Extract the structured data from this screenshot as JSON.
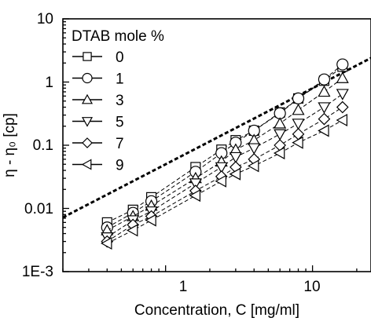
{
  "chart_data": {
    "type": "scatter",
    "title": "",
    "xlabel": "Concentration, C [mg/ml]",
    "ylabel": "η - η₀ [cp]",
    "xscale": "log",
    "yscale": "log",
    "xlim": [
      0.2,
      25
    ],
    "ylim": [
      0.001,
      10
    ],
    "x_ticks": [
      1,
      10
    ],
    "x_tick_labels": [
      "1",
      "10"
    ],
    "y_ticks": [
      0.001,
      0.01,
      0.1,
      1,
      10
    ],
    "y_tick_labels": [
      "1E-3",
      "0.01",
      "0.1",
      "1",
      "10"
    ],
    "grid": false,
    "legend": {
      "title": "DTAB mole %",
      "placement": "top-left"
    },
    "series": [
      {
        "name": "0",
        "marker": "square",
        "x": [
          0.4,
          0.6,
          0.8,
          1.6,
          2.4,
          3.0,
          4.0,
          6.0,
          8.0,
          12.0,
          16.0
        ],
        "y": [
          0.006,
          0.0095,
          0.015,
          0.045,
          0.085,
          0.12,
          0.17,
          0.33,
          0.55,
          1.05,
          1.75
        ]
      },
      {
        "name": "1",
        "marker": "circle",
        "x": [
          0.4,
          0.6,
          0.8,
          1.6,
          2.4,
          3.0,
          4.0,
          6.0,
          8.0,
          12.0,
          16.0
        ],
        "y": [
          0.005,
          0.0085,
          0.013,
          0.038,
          0.075,
          0.11,
          0.17,
          0.32,
          0.55,
          1.1,
          1.9
        ]
      },
      {
        "name": "3",
        "marker": "triangle-up",
        "x": [
          0.4,
          0.6,
          0.8,
          1.6,
          2.4,
          3.0,
          4.0,
          6.0,
          8.0,
          12.0,
          16.0
        ],
        "y": [
          0.0045,
          0.0075,
          0.011,
          0.03,
          0.055,
          0.085,
          0.12,
          0.22,
          0.36,
          0.7,
          1.15
        ]
      },
      {
        "name": "5",
        "marker": "triangle-down",
        "x": [
          0.4,
          0.6,
          0.8,
          1.6,
          2.4,
          3.0,
          4.0,
          6.0,
          8.0,
          12.0,
          16.0
        ],
        "y": [
          0.0035,
          0.0065,
          0.009,
          0.025,
          0.045,
          0.065,
          0.09,
          0.15,
          0.22,
          0.4,
          0.65
        ]
      },
      {
        "name": "7",
        "marker": "diamond",
        "x": [
          0.4,
          0.6,
          0.8,
          1.6,
          2.4,
          3.0,
          4.0,
          6.0,
          8.0,
          12.0,
          16.0
        ],
        "y": [
          0.003,
          0.0055,
          0.0075,
          0.019,
          0.032,
          0.045,
          0.06,
          0.1,
          0.15,
          0.26,
          0.4
        ]
      },
      {
        "name": "9",
        "marker": "triangle-left",
        "x": [
          0.4,
          0.6,
          0.8,
          1.6,
          2.4,
          3.0,
          4.0,
          6.0,
          8.0,
          12.0,
          16.0
        ],
        "y": [
          0.0028,
          0.0045,
          0.0065,
          0.016,
          0.027,
          0.035,
          0.047,
          0.075,
          0.11,
          0.17,
          0.25
        ]
      }
    ],
    "fit_line": {
      "style": "dashed",
      "x": [
        0.2,
        25
      ],
      "y": [
        0.0072,
        2.4
      ]
    }
  }
}
